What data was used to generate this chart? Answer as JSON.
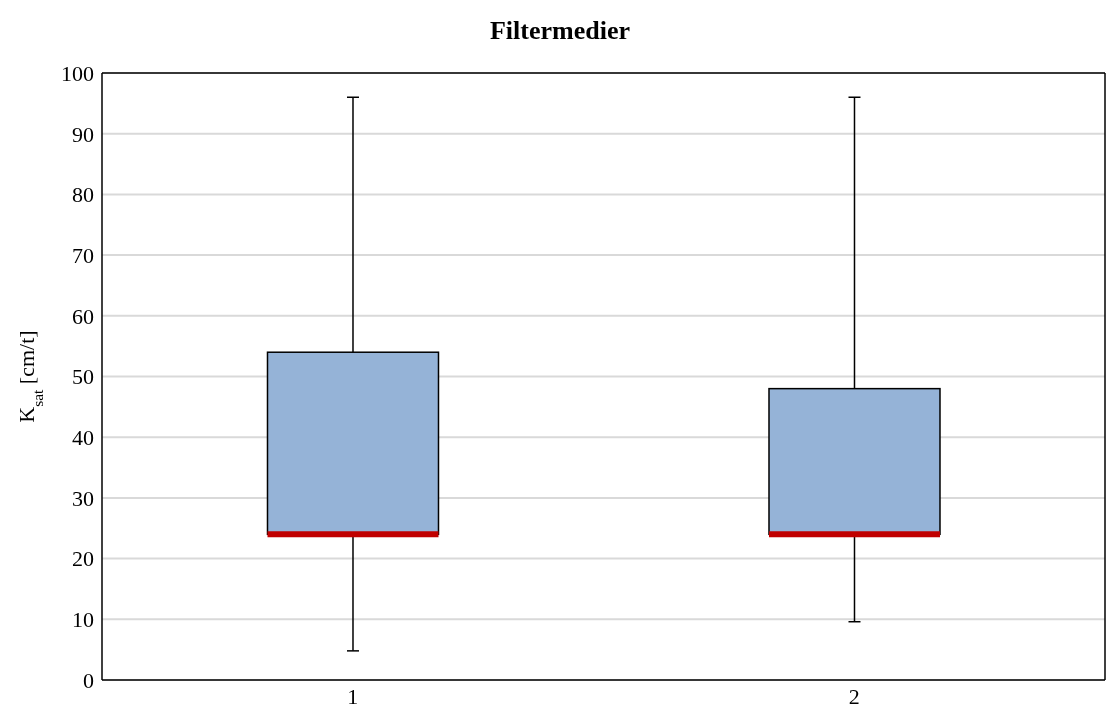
{
  "chart_data": {
    "type": "box",
    "title": "Filtermedier",
    "ylabel": "K$_{sat}$ [cm/t]",
    "categories": [
      "1",
      "2"
    ],
    "boxes": [
      {
        "low": 4.8,
        "q1": 24,
        "median": 24,
        "q3": 54,
        "high": 96
      },
      {
        "low": 9.6,
        "q1": 24,
        "median": 24,
        "q3": 48,
        "high": 96
      }
    ],
    "color": "#95b3d7",
    "ylim": [
      0,
      100
    ],
    "yticks": [
      0,
      10,
      20,
      30,
      40,
      50,
      60,
      70,
      80,
      90,
      100
    ],
    "grid": "y"
  }
}
